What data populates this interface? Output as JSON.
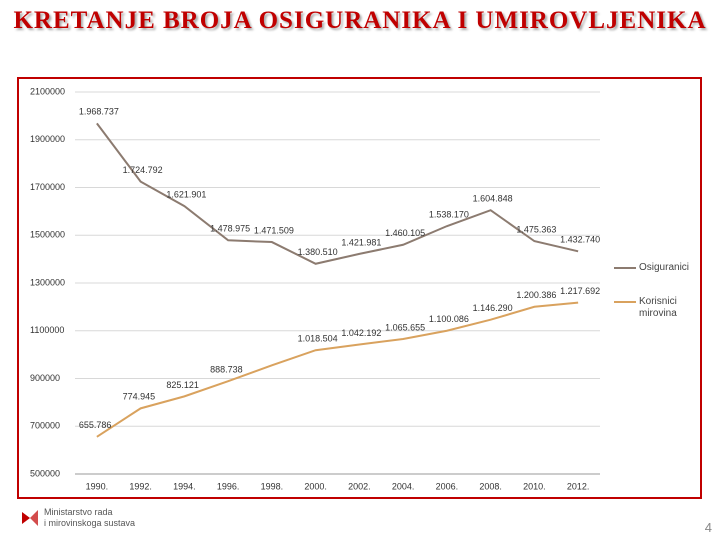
{
  "title": "KRETANJE BROJA OSIGURANIKA I UMIROVLJENIKA",
  "chart_data": {
    "type": "line",
    "categories": [
      "1990.",
      "1992.",
      "1994.",
      "1996.",
      "1998.",
      "2000.",
      "2002.",
      "2004.",
      "2006.",
      "2008.",
      "2010.",
      "2012."
    ],
    "series": [
      {
        "name": "Osiguranici",
        "color": "#8c7b70",
        "values": [
          1968737,
          1724792,
          1621901,
          1478975,
          1471509,
          1380510,
          1421981,
          1460105,
          1538170,
          1604848,
          1475363,
          1432740
        ],
        "value_labels": [
          "1.968.737",
          "1.724.792",
          "1.621.901",
          "1.478.975",
          "1.471.509",
          "1.380.510",
          "1.421.981",
          "1.460.105",
          "1.538.170",
          "1.604.848",
          "1.475.363",
          "1.432.740"
        ]
      },
      {
        "name": "Korisnici mirovina",
        "color": "#d9a25e",
        "values": [
          655786,
          774945,
          825121,
          888738,
          955000,
          1018504,
          1042192,
          1065655,
          1100086,
          1146290,
          1200386,
          1217692
        ],
        "value_labels": [
          "655.786",
          "774.945",
          "825.121",
          "888.738",
          null,
          "1.018.504",
          "1.042.192",
          "1.065.655",
          "1.100.086",
          "1.146.290",
          "1.200.386",
          "1.217.692"
        ]
      }
    ],
    "ylim": [
      500000,
      2100000
    ],
    "yticks": [
      500000,
      700000,
      900000,
      1100000,
      1300000,
      1500000,
      1700000,
      1900000,
      2100000
    ],
    "grid": true,
    "legend": "right"
  },
  "footer": {
    "org": [
      "Ministarstvo rada",
      "i mirovinskoga sustava"
    ],
    "page": "4"
  }
}
